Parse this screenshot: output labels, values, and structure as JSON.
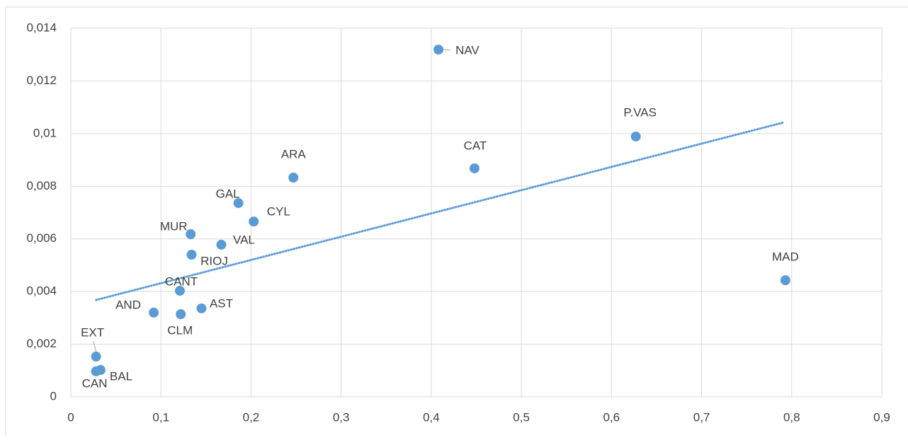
{
  "chart_data": {
    "type": "scatter",
    "labels": [
      "NAV",
      "P.VAS",
      "CAT",
      "MAD",
      "ARA",
      "GAL",
      "CYL",
      "MUR",
      "VAL",
      "RIOJ",
      "CANT",
      "AND",
      "CLM",
      "AST",
      "EXT",
      "BAL",
      "CAN"
    ],
    "x": [
      0.408,
      0.627,
      0.448,
      0.793,
      0.247,
      0.186,
      0.203,
      0.133,
      0.167,
      0.134,
      0.121,
      0.092,
      0.122,
      0.145,
      0.028,
      0.033,
      0.028
    ],
    "values": [
      0.01319,
      0.00989,
      0.00868,
      0.00443,
      0.00833,
      0.00736,
      0.00666,
      0.00618,
      0.00578,
      0.0054,
      0.00403,
      0.0032,
      0.00314,
      0.00336,
      0.00153,
      0.00102,
      0.00097
    ],
    "color": "#5b9bd5",
    "trendline": {
      "x": [
        0.028,
        0.792
      ],
      "values": [
        0.00368,
        0.01043
      ],
      "color": "#5b9bd5"
    },
    "xlim": [
      0,
      0.9
    ],
    "xticks": [
      0,
      {
        "value": 0.1,
        "label": "0,1"
      },
      {
        "value": 0.2,
        "label": "0,2"
      },
      {
        "value": 0.3,
        "label": "0,3"
      },
      {
        "value": 0.4,
        "label": "0,4"
      },
      {
        "value": 0.5,
        "label": "0,5"
      },
      {
        "value": 0.6,
        "label": "0,6"
      },
      {
        "value": 0.7,
        "label": "0,7"
      },
      {
        "value": 0.8,
        "label": "0,8"
      },
      {
        "value": 0.9,
        "label": "0,9"
      }
    ],
    "ylim": [
      0,
      0.014
    ],
    "yticks": [
      0,
      {
        "value": 0.002,
        "label": "0,002"
      },
      {
        "value": 0.004,
        "label": "0,004"
      },
      {
        "value": 0.006,
        "label": "0,006"
      },
      {
        "value": 0.008,
        "label": "0,008"
      },
      {
        "value": 0.01,
        "label": "0,01"
      },
      {
        "value": 0.012,
        "label": "0,012"
      },
      {
        "value": 0.014,
        "label": "0,014"
      }
    ],
    "grid": true
  }
}
